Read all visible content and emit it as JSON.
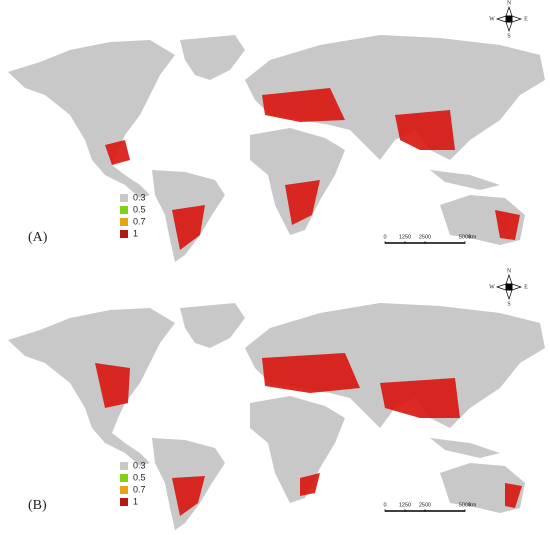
{
  "panels": [
    {
      "label": "(A)",
      "legend": [
        {
          "label": "0.3",
          "color": "#c8c8c8"
        },
        {
          "label": "0.5",
          "color": "#7fd11b"
        },
        {
          "label": "0.7",
          "color": "#e8a317"
        },
        {
          "label": "1",
          "color": "#b51a10"
        }
      ],
      "scale": {
        "ticks": [
          0,
          1250,
          2500,
          5000
        ],
        "unit": "km"
      },
      "compass": {
        "n": "N",
        "e": "E",
        "s": "S",
        "w": "W"
      }
    },
    {
      "label": "(B)",
      "legend": [
        {
          "label": "0.3",
          "color": "#c8c8c8"
        },
        {
          "label": "0.5",
          "color": "#7fd11b"
        },
        {
          "label": "0.7",
          "color": "#e8a317"
        },
        {
          "label": "1",
          "color": "#b51a10"
        }
      ],
      "scale": {
        "ticks": [
          0,
          1250,
          2500,
          5000
        ],
        "unit": "km"
      },
      "compass": {
        "n": "N",
        "e": "E",
        "s": "S",
        "w": "W"
      }
    }
  ]
}
